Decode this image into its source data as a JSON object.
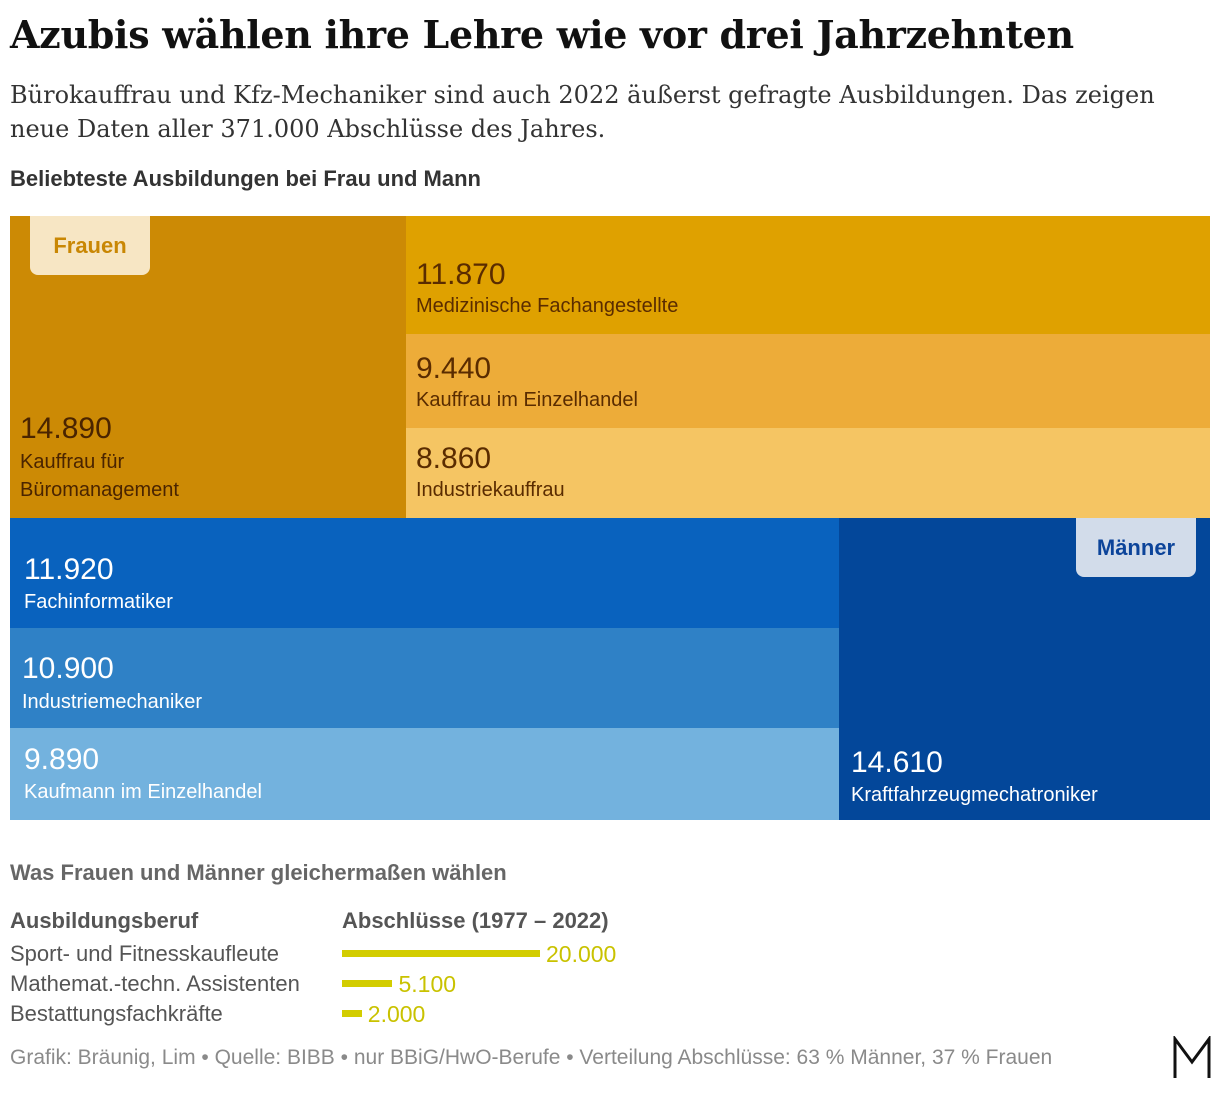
{
  "title": "Azubis wählen ihre Lehre wie vor drei Jahrzehnten",
  "subtitle": "Bürokauffrau und Kfz-Mechaniker sind auch 2022 äußerst gefragte Ausbildungen. Das zeigen neue Daten aller 371.000 Abschlüsse des Jahres.",
  "treemap": {
    "heading": "Beliebteste Ausbildungen bei Frau und Mann",
    "tag_women": "Frauen",
    "tag_men": "Männer",
    "women": {
      "bueromanagement": {
        "value": "14.890",
        "label": "Kauffrau für Büromanagement"
      },
      "medizin": {
        "value": "11.870",
        "label": "Medizinische Fachangestellte"
      },
      "einzelhandel": {
        "value": "9.440",
        "label": "Kauffrau im Einzelhandel"
      },
      "industrie": {
        "value": "8.860",
        "label": "Industriekauffrau"
      }
    },
    "men": {
      "fachinformatiker": {
        "value": "11.920",
        "label": "Fachinformatiker"
      },
      "industriemechaniker": {
        "value": "10.900",
        "label": "Industriemechaniker"
      },
      "einzelhandel": {
        "value": "9.890",
        "label": "Kaufmann im Einzelhandel"
      },
      "kfz": {
        "value": "14.610",
        "label": "Kraftfahrzeugmechatroniker"
      }
    }
  },
  "bars": {
    "heading": "Was Frauen und Männer gleichermaßen wählen",
    "col_name": "Ausbildungsberuf",
    "col_value": "Abschlüsse (1977 – 2022)",
    "rows": [
      {
        "name": "Sport- und Fitnesskaufleute",
        "value_label": "20.000"
      },
      {
        "name": "Mathemat.-techn. Assistenten",
        "value_label": "5.100"
      },
      {
        "name": "Bestattungsfachkräfte",
        "value_label": "2.000"
      }
    ]
  },
  "footer": "Grafik: Bräunig, Lim • Quelle: BIBB • nur BBiG/HwO-Berufe • Verteilung Abschlüsse: 63 % Männer, 37 % Frauen",
  "colors": {
    "women_1": "#cc8a05",
    "women_2": "#dfa100",
    "women_3": "#edac39",
    "women_4": "#f5c563",
    "men_1": "#0962be",
    "men_2": "#2f81c6",
    "men_3": "#73b2de",
    "men_4": "#03479a",
    "bar": "#d3cd00"
  },
  "chart_data": [
    {
      "type": "treemap",
      "title": "Beliebteste Ausbildungen bei Frau und Mann",
      "groups": [
        {
          "name": "Frauen",
          "items": [
            {
              "label": "Kauffrau für Büromanagement",
              "value": 14890
            },
            {
              "label": "Medizinische Fachangestellte",
              "value": 11870
            },
            {
              "label": "Kauffrau im Einzelhandel",
              "value": 9440
            },
            {
              "label": "Industriekauffrau",
              "value": 8860
            }
          ]
        },
        {
          "name": "Männer",
          "items": [
            {
              "label": "Kraftfahrzeugmechatroniker",
              "value": 14610
            },
            {
              "label": "Fachinformatiker",
              "value": 11920
            },
            {
              "label": "Industriemechaniker",
              "value": 10900
            },
            {
              "label": "Kaufmann im Einzelhandel",
              "value": 9890
            }
          ]
        }
      ]
    },
    {
      "type": "bar",
      "orientation": "horizontal",
      "title": "Was Frauen und Männer gleichermaßen wählen",
      "categories": [
        "Sport- und Fitnesskaufleute",
        "Mathemat.-techn. Assistenten",
        "Bestattungsfachkräfte"
      ],
      "values": [
        20000,
        5100,
        2000
      ],
      "xlabel": "Abschlüsse (1977 – 2022)",
      "ylabel": "Ausbildungsberuf"
    }
  ]
}
